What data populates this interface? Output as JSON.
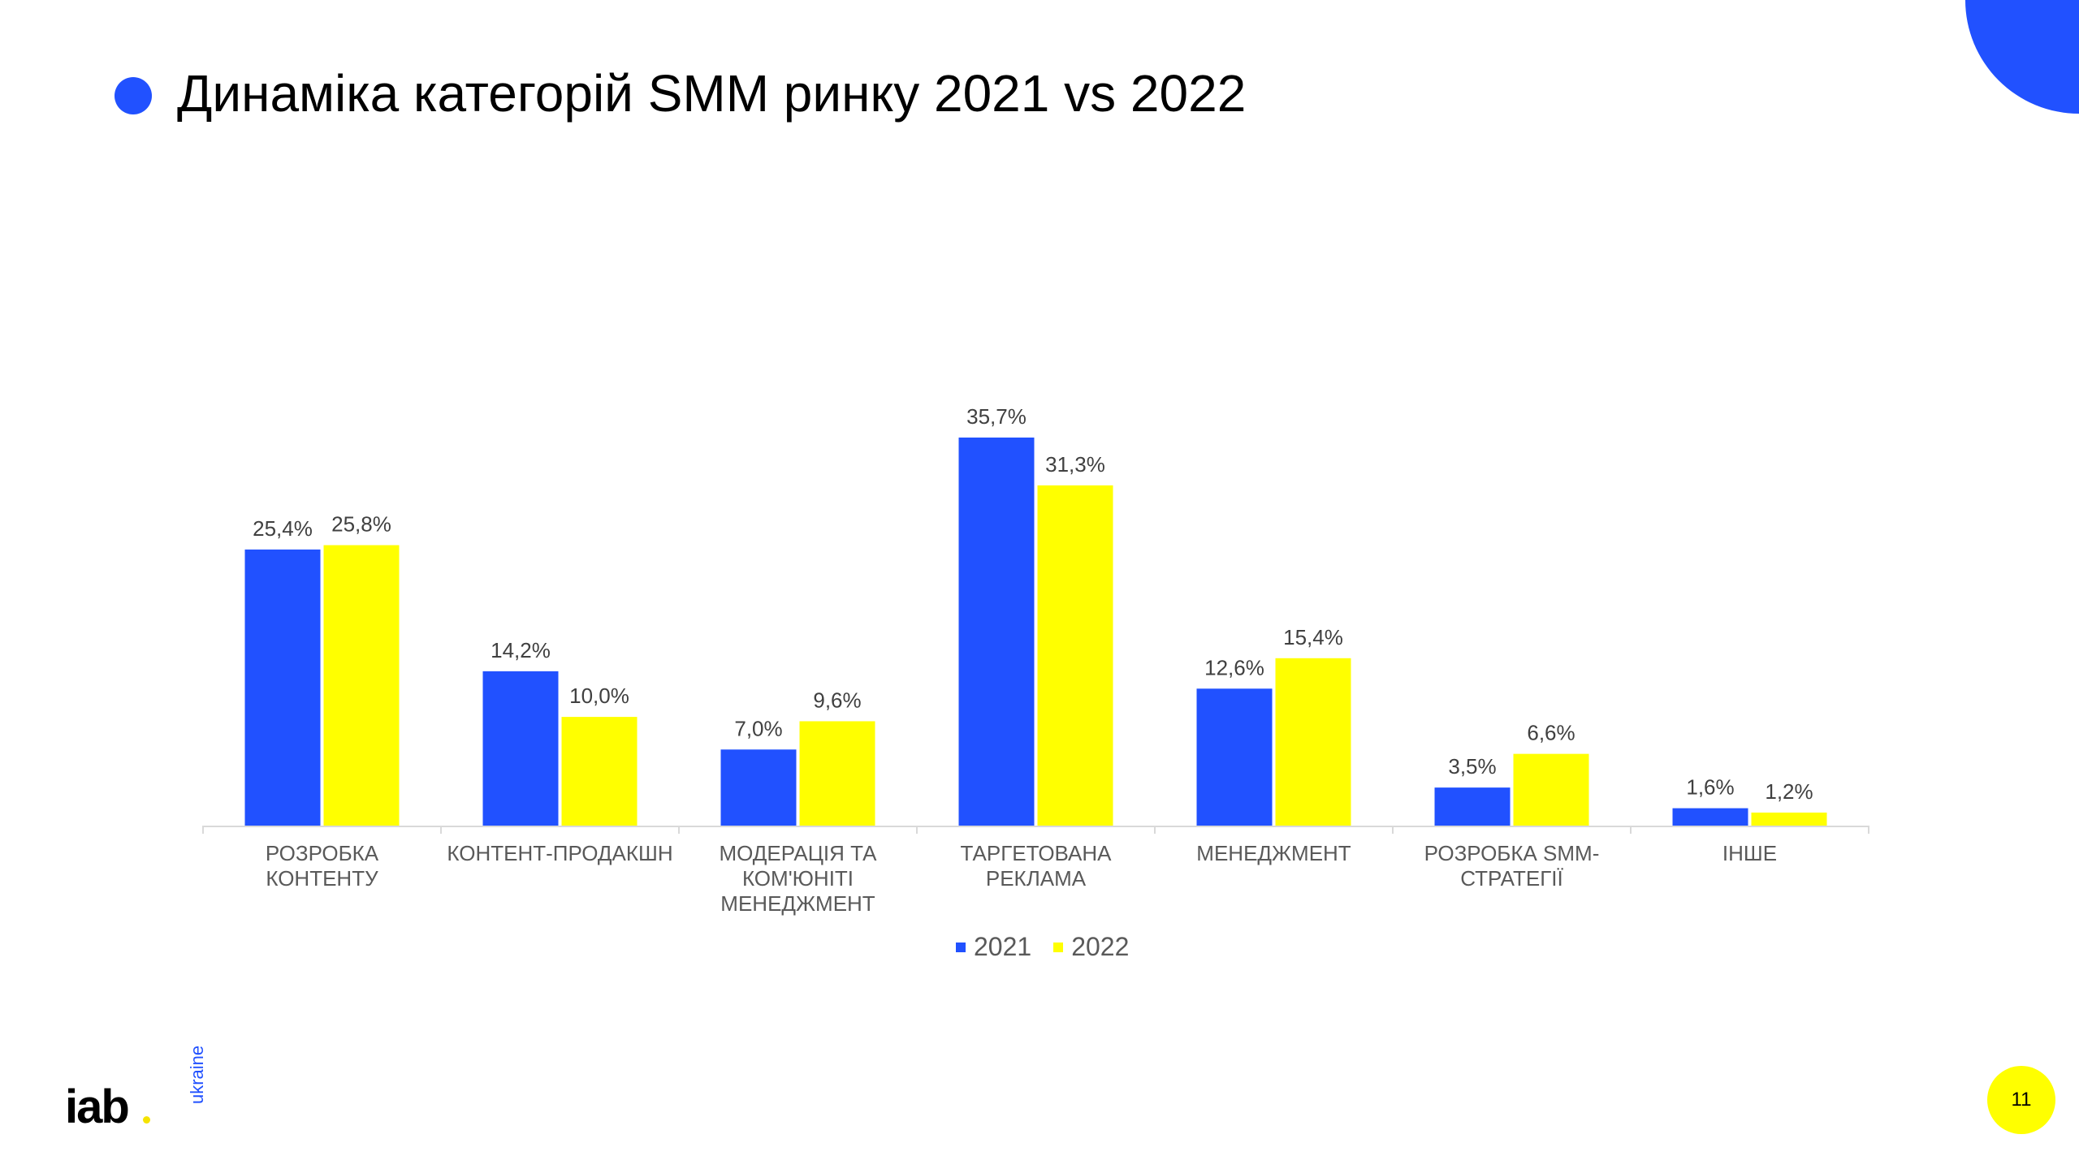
{
  "title": "Динаміка категорій SMM ринку 2021 vs 2022",
  "logo": {
    "text": "iab",
    "sub": "ukraine"
  },
  "page_number": "11",
  "chart_data": {
    "type": "bar",
    "title": "Динаміка категорій SMM ринку 2021 vs 2022",
    "categories": [
      "РОЗРОБКА\nКОНТЕНТУ",
      "КОНТЕНТ-ПРОДАКШН",
      "МОДЕРАЦІЯ ТА\nКОМ'ЮНІТІ\nМЕНЕДЖМЕНТ",
      "ТАРГЕТОВАНА\nРЕКЛАМА",
      "МЕНЕДЖМЕНТ",
      "РОЗРОБКА SMM-\nСТРАТЕГІЇ",
      "ІНШЕ"
    ],
    "series": [
      {
        "name": "2021",
        "color": "#2151ff",
        "values": [
          25.4,
          14.2,
          7.0,
          35.7,
          12.6,
          3.5,
          1.6
        ],
        "labels": [
          "25,4%",
          "14,2%",
          "7,0%",
          "35,7%",
          "12,6%",
          "3,5%",
          "1,6%"
        ]
      },
      {
        "name": "2022",
        "color": "#ffff00",
        "values": [
          25.8,
          10.0,
          9.6,
          31.3,
          15.4,
          6.6,
          1.2
        ],
        "labels": [
          "25,8%",
          "10,0%",
          "9,6%",
          "31,3%",
          "15,4%",
          "6,6%",
          "1,2%"
        ]
      }
    ],
    "xlabel": "",
    "ylabel": "",
    "ylim": [
      0,
      40
    ],
    "grid": false,
    "legend_position": "bottom"
  }
}
